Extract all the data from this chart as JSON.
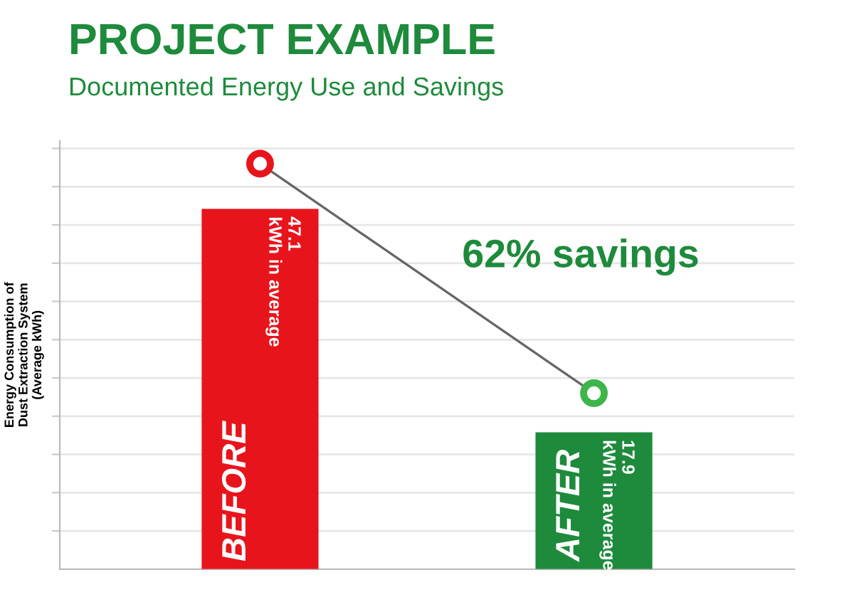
{
  "chart_data": {
    "type": "bar",
    "title": "PROJECT EXAMPLE",
    "subtitle": "Documented Energy Use and Savings",
    "ylabel": "Energy Consumption of\nDust Extraction System\n(Average kWh)",
    "categories": [
      "BEFORE",
      "AFTER"
    ],
    "series": [
      {
        "type": "bar",
        "colors": [
          "#e8141c",
          "#1e8a3c"
        ],
        "values": [
          47.1,
          17.9
        ],
        "value_labels": [
          "47.1 kWh in average",
          "17.9 kWh in average"
        ]
      },
      {
        "type": "line",
        "color": "#666666",
        "values": [
          53,
          23
        ],
        "marker": "circle",
        "colors": [
          "#e8141c",
          "#3cb54a"
        ]
      }
    ],
    "annotations": [
      "62% savings"
    ],
    "ylim": [
      0,
      56
    ],
    "yticks": [
      {
        "value": 5,
        "label": null
      },
      {
        "value": 10,
        "label": null
      },
      {
        "value": 15,
        "label": null
      },
      {
        "value": 20,
        "label": null
      },
      {
        "value": 25,
        "label": null
      },
      {
        "value": 30,
        "label": null
      },
      {
        "value": 35,
        "label": null
      },
      {
        "value": 40,
        "label": null
      },
      {
        "value": 45,
        "label": null
      },
      {
        "value": 50,
        "label": null
      },
      {
        "value": 55,
        "label": null
      }
    ],
    "grid": "y",
    "tick_labels": false
  }
}
